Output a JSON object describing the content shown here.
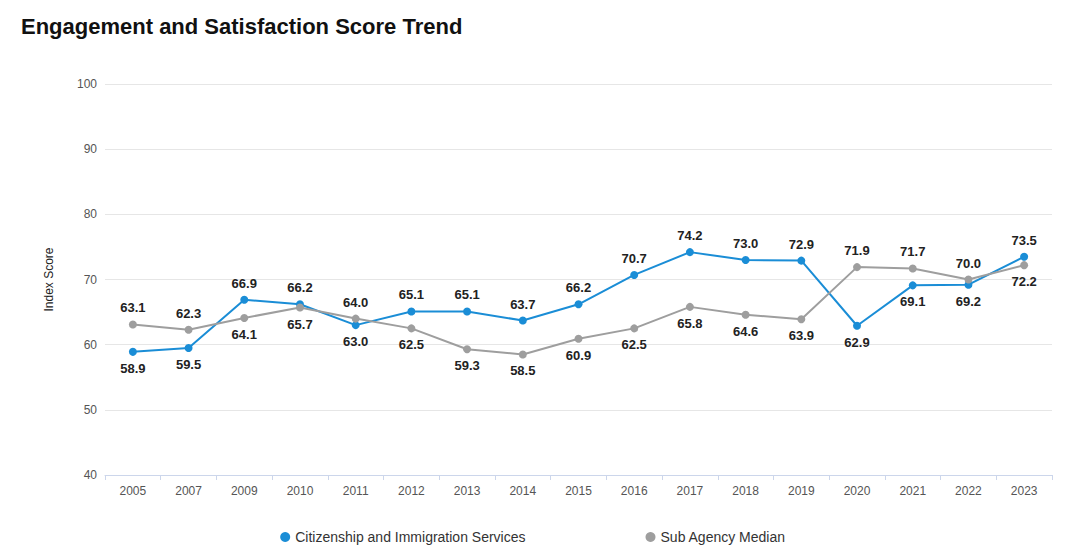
{
  "chart_data": {
    "type": "line",
    "title": "Engagement and Satisfaction Score Trend",
    "y_label": "Index Score",
    "categories": [
      "2005",
      "2007",
      "2009",
      "2010",
      "2011",
      "2012",
      "2013",
      "2014",
      "2015",
      "2016",
      "2017",
      "2018",
      "2019",
      "2020",
      "2021",
      "2022",
      "2023"
    ],
    "series": [
      {
        "name": "Citizenship and Immigration Services",
        "color": "#1a8dd6",
        "marker": "circle",
        "values": [
          58.9,
          59.5,
          66.9,
          66.2,
          63.0,
          65.1,
          65.1,
          63.7,
          66.2,
          70.7,
          74.2,
          73.0,
          72.9,
          62.9,
          69.1,
          69.2,
          73.5
        ],
        "value_labels": [
          "58.9",
          "59.5",
          "66.9",
          "66.2",
          "63.0",
          "65.1",
          "65.1",
          "63.7",
          "66.2",
          "70.7",
          "74.2",
          "73.0",
          "72.9",
          "62.9",
          "69.1",
          "69.2",
          "73.5"
        ]
      },
      {
        "name": "Sub Agency Median",
        "color": "#9e9e9e",
        "marker": "circle",
        "values": [
          63.1,
          62.3,
          64.1,
          65.7,
          64.0,
          62.5,
          59.3,
          58.5,
          60.9,
          62.5,
          65.8,
          64.6,
          63.9,
          71.9,
          71.7,
          70.0,
          72.2
        ],
        "value_labels": [
          "63.1",
          "62.3",
          "64.1",
          "65.7",
          "64.0",
          "62.5",
          "59.3",
          "58.5",
          "60.9",
          "62.5",
          "65.8",
          "64.6",
          "63.9",
          "71.9",
          "71.7",
          "70.0",
          "72.2"
        ]
      }
    ],
    "ylim": [
      40,
      100
    ],
    "yticks": [
      40,
      50,
      60,
      70,
      80,
      90,
      100
    ],
    "grid": true,
    "legend": "bottom",
    "data_labels": true
  }
}
